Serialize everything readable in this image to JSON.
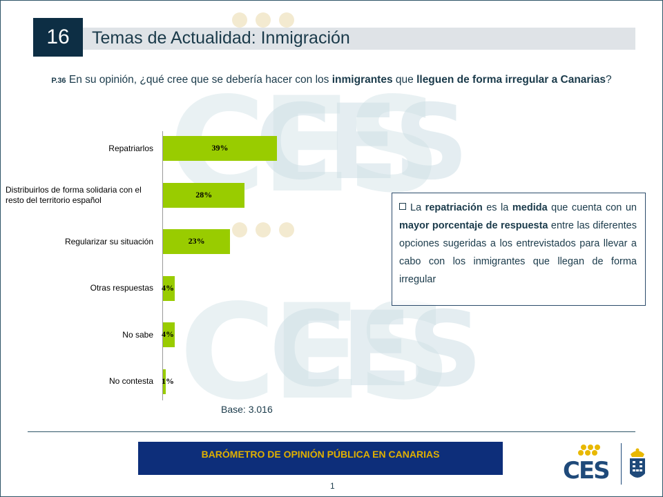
{
  "header": {
    "slide_number": "16",
    "title": "Temas de Actualidad: Inmigración"
  },
  "question": {
    "number": "P.36",
    "parts": [
      {
        "text": " En su opinión, ¿qué cree que se debería hacer con los ",
        "bold": false
      },
      {
        "text": "inmigrantes",
        "bold": true
      },
      {
        "text": " que ",
        "bold": false
      },
      {
        "text": "lleguen de forma irregular a Canarias",
        "bold": true
      },
      {
        "text": "?",
        "bold": false
      }
    ]
  },
  "chart_data": {
    "type": "bar",
    "orientation": "horizontal",
    "categories": [
      "Repatriarlos",
      "Distribuirlos de forma solidaria con el resto del territorio español",
      "Regularizar su situación",
      "Otras respuestas",
      "No sabe",
      "No contesta"
    ],
    "values": [
      39,
      28,
      23,
      4,
      4,
      1
    ],
    "value_labels": [
      "39%",
      "28%",
      "23%",
      "4%",
      "4%",
      "1%"
    ],
    "unit": "%",
    "bar_color": "#99cc00",
    "grid": false
  },
  "base_note": "Base: 3.016",
  "note_box": {
    "parts": [
      {
        "text": "La ",
        "bold": false
      },
      {
        "text": "repatriación",
        "bold": true
      },
      {
        "text": " es la ",
        "bold": false
      },
      {
        "text": "medida",
        "bold": true
      },
      {
        "text": " que cuenta con un ",
        "bold": false
      },
      {
        "text": "mayor porcentaje de respuesta",
        "bold": true
      },
      {
        "text": " entre las diferentes opciones sugeridas a los entrevistados para llevar a cabo con los inmigrantes que llegan de forma irregular",
        "bold": false
      }
    ]
  },
  "footer": {
    "title": "BARÓMETRO DE OPINIÓN PÚBLICA EN CANARIAS",
    "page_number": "1"
  },
  "logo": {
    "text": "CES"
  },
  "colors": {
    "navy": "#0d2e44",
    "footer_bg": "#0d2e7a",
    "footer_text": "#e0b000",
    "accent_bar": "#99cc00"
  }
}
